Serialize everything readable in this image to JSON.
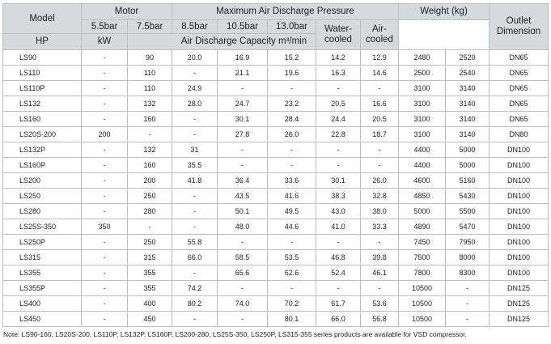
{
  "header": {
    "model": "Model",
    "motor": "Motor",
    "hp": "HP",
    "kw": "kW",
    "pressure": "Maximum Air Discharge Pressure",
    "pressures": [
      "5.5bar",
      "7.5bar",
      "8.5bar",
      "10.5bar",
      "13.0bar"
    ],
    "capacity": "Air Discharge Capacity m³/min",
    "weight": "Weight (kg)",
    "water": "Water-cooled",
    "air": "Air-cooled",
    "outlet": "Outlet Dimension"
  },
  "table": {
    "rows": [
      [
        "LS90",
        "-",
        "90",
        "20.0",
        "16.9",
        "15.2",
        "14.2",
        "12.9",
        "2480",
        "2520",
        "DN65"
      ],
      [
        "LS110",
        "-",
        "110",
        "-",
        "21.1",
        "19.6",
        "16.3",
        "14.6",
        "2500",
        "2540",
        "DN65"
      ],
      [
        "LS110P",
        "-",
        "110",
        "24.9",
        "-",
        "-",
        "-",
        "-",
        "3100",
        "3140",
        "DN65"
      ],
      [
        "LS132",
        "-",
        "132",
        "28.0",
        "24.7",
        "23.2",
        "20.5",
        "16.6",
        "3100",
        "3140",
        "DN65"
      ],
      [
        "LS160",
        "-",
        "160",
        "-",
        "30.1",
        "28.4",
        "24.4",
        "20.5",
        "3100",
        "3140",
        "DN65"
      ],
      [
        "LS20S-200",
        "200",
        "-",
        "-",
        "27.8",
        "26.0",
        "22.8",
        "18.7",
        "3100",
        "3140",
        "DN80"
      ],
      [
        "LS132P",
        "-",
        "132",
        "31",
        "-",
        "-",
        "-",
        "-",
        "4400",
        "5000",
        "DN100"
      ],
      [
        "LS160P",
        "-",
        "160",
        "35.5",
        "-",
        "-",
        "-",
        "-",
        "4400",
        "5000",
        "DN100"
      ],
      [
        "LS200",
        "-",
        "200",
        "41.8",
        "36.4",
        "33.6",
        "30.1",
        "26.0",
        "4600",
        "5160",
        "DN100"
      ],
      [
        "LS250",
        "-",
        "250",
        "-",
        "43.5",
        "41.6",
        "38.3",
        "32.8",
        "4850",
        "5430",
        "DN100"
      ],
      [
        "LS280",
        "-",
        "280",
        "-",
        "50.1",
        "49.5",
        "43.0",
        "38.0",
        "5000",
        "5500",
        "DN100"
      ],
      [
        "LS25S-350",
        "350",
        "-",
        "-",
        "48.0",
        "44.6",
        "41.0",
        "33.3",
        "4890",
        "5470",
        "DN100"
      ],
      [
        "LS250P",
        "-",
        "250",
        "55.8",
        "-",
        "-",
        "-",
        "-",
        "7450",
        "7950",
        "DN100"
      ],
      [
        "LS315",
        "-",
        "315",
        "66.0",
        "58.5",
        "53.5",
        "46.8",
        "39.8",
        "7500",
        "8000",
        "DN100"
      ],
      [
        "LS355",
        "-",
        "355",
        "-",
        "65.6",
        "62.6",
        "52.4",
        "46.1",
        "7800",
        "8300",
        "DN100"
      ],
      [
        "LS355P",
        "-",
        "355",
        "74.2",
        "-",
        "-",
        "-",
        "-",
        "10500",
        "-",
        "DN125"
      ],
      [
        "LS400",
        "-",
        "400",
        "80.2",
        "74.0",
        "70.2",
        "61.7",
        "53.6",
        "10500",
        "-",
        "DN125"
      ],
      [
        "LS450",
        "-",
        "450",
        "-",
        "-",
        "80.1",
        "66.0",
        "56.8",
        "10500",
        "-",
        "DN125"
      ]
    ]
  },
  "note": "Note: LS90-160, LS20S-200, LS110P, LS132P, LS160P, LS200-280, LS25S-350, LS250P, LS315-355 series products are available for VSD compressor."
}
